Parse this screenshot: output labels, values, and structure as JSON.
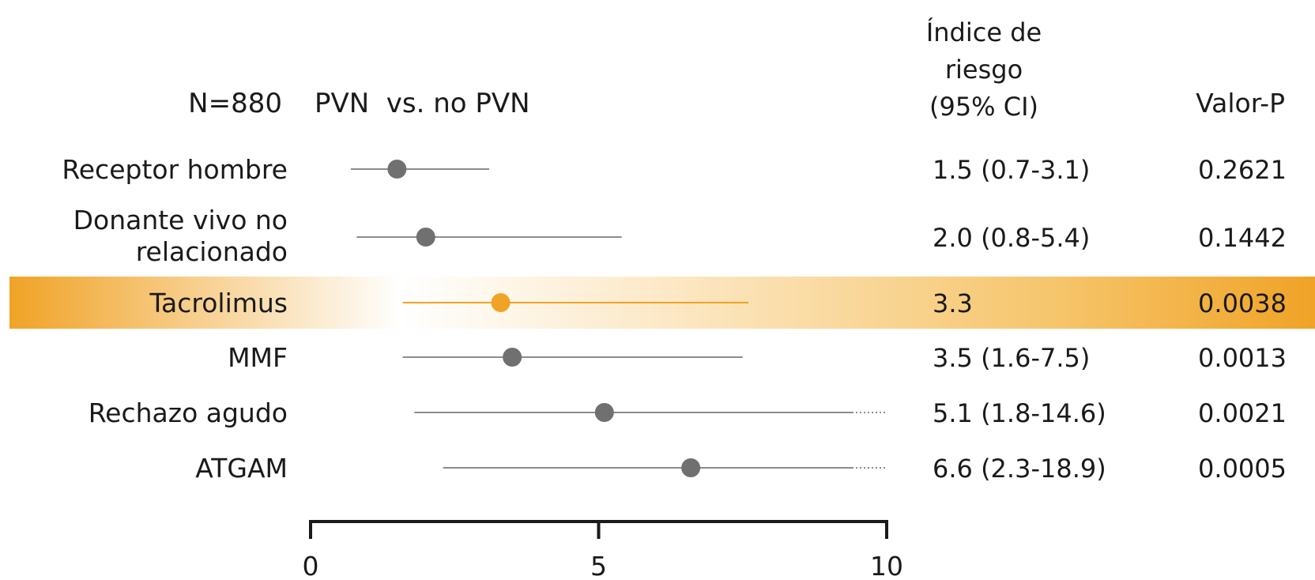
{
  "chart_data": {
    "type": "forest",
    "header": {
      "n_label": "N=880",
      "comparison_label": "PVN  vs. no PVN",
      "hr_header": [
        "Índice de",
        "riesgo",
        "(95% CI)"
      ],
      "p_header": "Valor-P"
    },
    "rows": [
      {
        "label": [
          "Receptor hombre"
        ],
        "hr": 1.5,
        "ci_low": 0.7,
        "ci_high": 3.1,
        "ci_text": "1.5 (0.7-3.1)",
        "p": "0.2621",
        "highlight": false,
        "ci_truncated": false
      },
      {
        "label": [
          "Donante vivo no",
          "relacionado"
        ],
        "hr": 2.0,
        "ci_low": 0.8,
        "ci_high": 5.4,
        "ci_text": "2.0 (0.8-5.4)",
        "p": "0.1442",
        "highlight": false,
        "ci_truncated": false
      },
      {
        "label": [
          "Tacrolimus"
        ],
        "hr": 3.3,
        "ci_low": 1.6,
        "ci_high": 7.6,
        "ci_text": "3.3",
        "p": "0.0038",
        "highlight": true,
        "ci_truncated": false
      },
      {
        "label": [
          "MMF"
        ],
        "hr": 3.5,
        "ci_low": 1.6,
        "ci_high": 7.5,
        "ci_text": "3.5 (1.6-7.5)",
        "p": "0.0013",
        "highlight": false,
        "ci_truncated": false
      },
      {
        "label": [
          "Rechazo agudo"
        ],
        "hr": 5.1,
        "ci_low": 1.8,
        "ci_high": 14.6,
        "ci_text": "5.1 (1.8-14.6)",
        "p": "0.0021",
        "highlight": false,
        "ci_truncated": true
      },
      {
        "label": [
          "ATGAM"
        ],
        "hr": 6.6,
        "ci_low": 2.3,
        "ci_high": 18.9,
        "ci_text": "6.6 (2.3-18.9)",
        "p": "0.0005",
        "highlight": false,
        "ci_truncated": true
      }
    ],
    "xlim": [
      0,
      10
    ],
    "xticks": [
      0,
      5,
      10
    ],
    "colors": {
      "marker": "#707070",
      "ci_line": "#8c8c8c",
      "highlight": "#f0a326",
      "highlight_marker": "#f0a326",
      "axis": "#1a1a1a"
    }
  }
}
